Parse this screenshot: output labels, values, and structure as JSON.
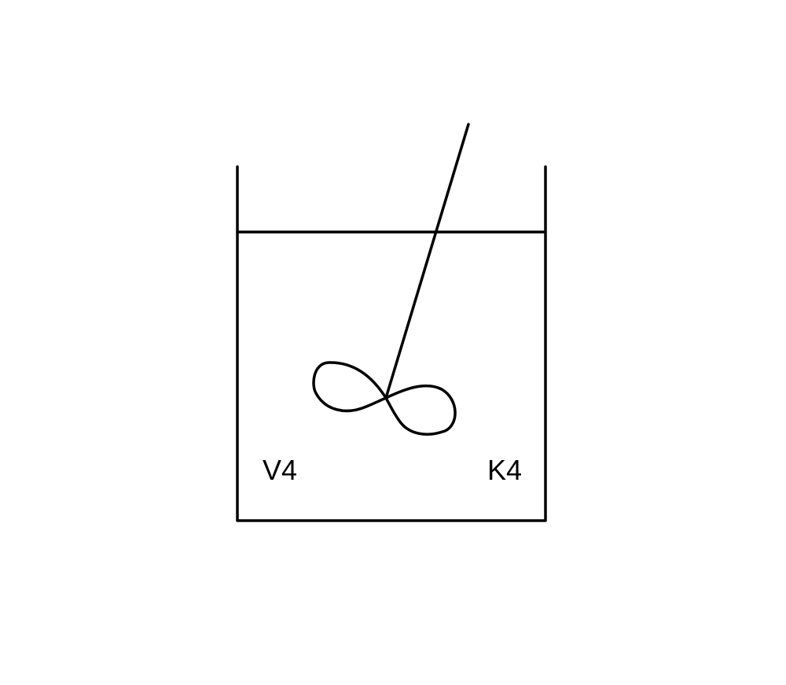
{
  "diagram": {
    "labels": {
      "left": "V4",
      "right": "K4"
    },
    "colors": {
      "line": "#000000",
      "background": "#ffffff"
    }
  }
}
